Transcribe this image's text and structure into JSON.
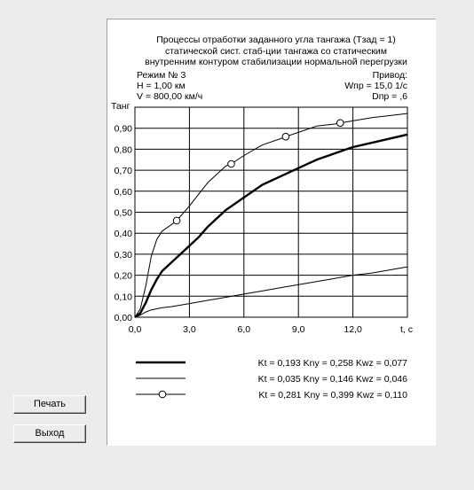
{
  "buttons": {
    "print_label": "Печать",
    "exit_label": "Выход"
  },
  "info": {
    "mode": "Режим № 3",
    "height": "H = 1,00 км",
    "speed": "V = 800,00 км/ч",
    "drive_title": "Привод:",
    "wpr": "Wпр = 15,0  1/с",
    "dpr": "Dпр = ,6"
  },
  "chart_data": {
    "type": "line",
    "title": [
      "Процессы отработки заданного угла тангажа (Тзад = 1)",
      "статической сист. стаб-ции тангажа со статическим",
      "внутренним контуром стабилизации нормальной перегрузки"
    ],
    "ylabel": "Танг",
    "xlabel": "t, с",
    "xlim": [
      0,
      15
    ],
    "ylim": [
      0,
      1.0
    ],
    "x_ticks": [
      "0,0",
      "3,0",
      "6,0",
      "9,0",
      "12,0"
    ],
    "y_ticks": [
      "0,00",
      "0,10",
      "0,20",
      "0,30",
      "0,40",
      "0,50",
      "0,60",
      "0,70",
      "0,80",
      "0,90"
    ],
    "grid": true,
    "series": [
      {
        "name": "Kt = 0,193 Kny = 0,258 Kwz = 0,077",
        "style": "thick",
        "points": [
          [
            0,
            0
          ],
          [
            0.3,
            0.02
          ],
          [
            0.6,
            0.07
          ],
          [
            0.9,
            0.13
          ],
          [
            1.2,
            0.18
          ],
          [
            1.5,
            0.22
          ],
          [
            2.0,
            0.26
          ],
          [
            2.5,
            0.3
          ],
          [
            3.0,
            0.34
          ],
          [
            3.5,
            0.38
          ],
          [
            4.0,
            0.43
          ],
          [
            4.5,
            0.47
          ],
          [
            5.0,
            0.51
          ],
          [
            6.0,
            0.57
          ],
          [
            7.0,
            0.63
          ],
          [
            8.0,
            0.67
          ],
          [
            9.0,
            0.71
          ],
          [
            10.0,
            0.75
          ],
          [
            11.0,
            0.78
          ],
          [
            12.0,
            0.81
          ],
          [
            13.0,
            0.83
          ],
          [
            14.0,
            0.85
          ],
          [
            15.0,
            0.87
          ]
        ]
      },
      {
        "name": "Kt = 0,035 Kny = 0,146 Kwz = 0,046",
        "style": "thin",
        "points": [
          [
            0,
            0
          ],
          [
            0.3,
            0.01
          ],
          [
            0.6,
            0.025
          ],
          [
            0.9,
            0.035
          ],
          [
            1.2,
            0.04
          ],
          [
            1.5,
            0.045
          ],
          [
            2.0,
            0.05
          ],
          [
            3.0,
            0.065
          ],
          [
            4.0,
            0.08
          ],
          [
            5.0,
            0.095
          ],
          [
            6.0,
            0.11
          ],
          [
            7.0,
            0.125
          ],
          [
            8.0,
            0.14
          ],
          [
            9.0,
            0.155
          ],
          [
            10.0,
            0.17
          ],
          [
            11.0,
            0.185
          ],
          [
            12.0,
            0.2
          ],
          [
            13.0,
            0.21
          ],
          [
            14.0,
            0.225
          ],
          [
            15.0,
            0.24
          ]
        ]
      },
      {
        "name": "Kt = 0,281 Kny = 0,399 Kwz = 0,110",
        "style": "thin-marker",
        "points": [
          [
            0,
            0
          ],
          [
            0.3,
            0.04
          ],
          [
            0.6,
            0.15
          ],
          [
            0.9,
            0.29
          ],
          [
            1.2,
            0.37
          ],
          [
            1.5,
            0.41
          ],
          [
            2.0,
            0.44
          ],
          [
            2.3,
            0.46
          ],
          [
            3.0,
            0.53
          ],
          [
            4.0,
            0.64
          ],
          [
            5.0,
            0.72
          ],
          [
            5.3,
            0.73
          ],
          [
            6.0,
            0.77
          ],
          [
            7.0,
            0.82
          ],
          [
            8.0,
            0.85
          ],
          [
            8.3,
            0.86
          ],
          [
            9.0,
            0.88
          ],
          [
            10.0,
            0.91
          ],
          [
            11.0,
            0.92
          ],
          [
            11.3,
            0.925
          ],
          [
            12.0,
            0.935
          ],
          [
            13.0,
            0.95
          ],
          [
            14.0,
            0.96
          ],
          [
            15.0,
            0.97
          ]
        ],
        "markers_x": [
          2.3,
          5.3,
          8.3,
          11.3
        ]
      }
    ]
  }
}
